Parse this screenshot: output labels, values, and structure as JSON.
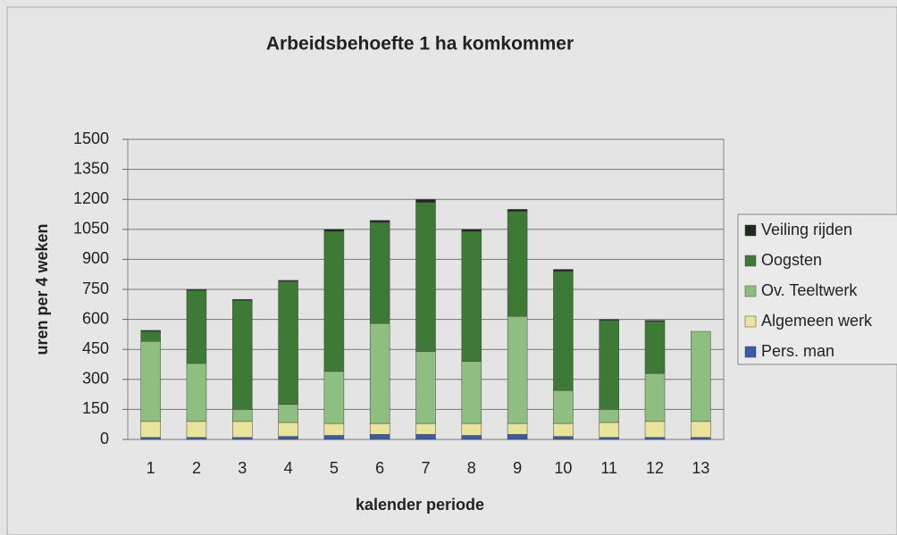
{
  "chart_data": {
    "type": "stacked_bar",
    "title": "Arbeidsbehoefte 1 ha komkommer",
    "x_label": "kalender periode",
    "y_label": "uren per 4 weken",
    "categories": [
      "1",
      "2",
      "3",
      "4",
      "5",
      "6",
      "7",
      "8",
      "9",
      "10",
      "11",
      "12",
      "13"
    ],
    "series": [
      {
        "name": "Pers. man",
        "color": "#3b5aa8",
        "values": [
          10,
          10,
          10,
          15,
          20,
          25,
          25,
          20,
          25,
          15,
          10,
          10,
          10
        ]
      },
      {
        "name": "Algemeen werk",
        "color": "#e8e49a",
        "values": [
          80,
          80,
          80,
          70,
          60,
          55,
          55,
          60,
          55,
          65,
          75,
          80,
          80
        ]
      },
      {
        "name": "Ov. Teeltwerk",
        "color": "#8fbf80",
        "values": [
          400,
          290,
          60,
          90,
          260,
          500,
          360,
          310,
          535,
          165,
          65,
          240,
          450
        ]
      },
      {
        "name": "Oogsten",
        "color": "#3c7a35",
        "values": [
          50,
          365,
          545,
          615,
          700,
          505,
          745,
          650,
          525,
          595,
          445,
          260,
          0
        ]
      },
      {
        "name": "Veiling rijden",
        "color": "#1f2a1f",
        "values": [
          5,
          5,
          5,
          5,
          10,
          10,
          15,
          10,
          10,
          10,
          5,
          5,
          0
        ]
      }
    ],
    "ylim": [
      0,
      1500
    ],
    "yticks": [
      0,
      150,
      300,
      450,
      600,
      750,
      900,
      1050,
      1200,
      1350,
      1500
    ],
    "grid": true,
    "legend": "right"
  }
}
